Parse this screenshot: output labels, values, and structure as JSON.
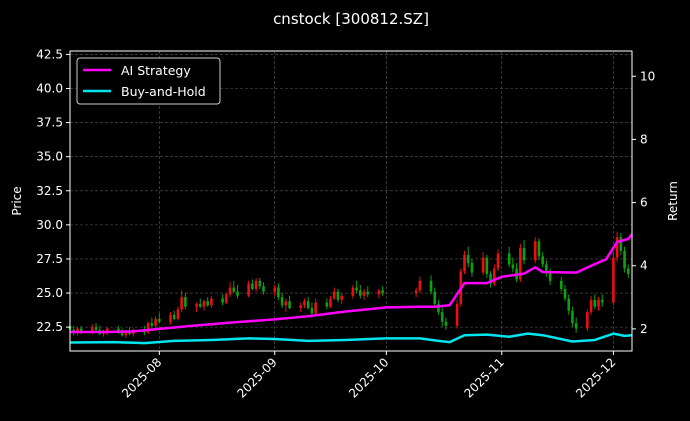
{
  "chart_data": {
    "type": "line",
    "title": "cnstock [300812.SZ]",
    "xlabel": "",
    "ylabel": "Price",
    "y2label": "Return",
    "grid": true,
    "legend_position": "top-left",
    "xlim": [
      "2025-07-08",
      "2025-12-06"
    ],
    "ylim": [
      20.75,
      42.75
    ],
    "y2lim": [
      1.3,
      10.8
    ],
    "x_tick_labels": [
      "2025-08",
      "2025-09",
      "2025-10",
      "2025-11",
      "2025-12"
    ],
    "x_ticks": [
      "2025-08-01",
      "2025-09-01",
      "2025-10-01",
      "2025-11-01",
      "2025-12-01"
    ],
    "y_ticks": [
      22.5,
      25.0,
      27.5,
      30.0,
      32.5,
      35.0,
      37.5,
      40.0,
      42.5
    ],
    "y_tick_labels": [
      "22.5",
      "25.0",
      "27.5",
      "30.0",
      "32.5",
      "35.0",
      "37.5",
      "40.0",
      "42.5"
    ],
    "y2_ticks": [
      2,
      4,
      6,
      8,
      10
    ],
    "y2_tick_labels": [
      "2",
      "4",
      "6",
      "8",
      "10"
    ],
    "colors": {
      "ai_strategy": "#ff00ff",
      "buy_and_hold": "#00e5ee",
      "candle_up": "#e81010",
      "candle_down": "#0ea00e",
      "grid": "#5a5a5a",
      "axes": "#ffffff"
    },
    "series": [
      {
        "name": "AI Strategy",
        "axis": "return",
        "points": [
          [
            "2025-07-08",
            1.9
          ],
          [
            "2025-07-18",
            1.9
          ],
          [
            "2025-07-25",
            1.92
          ],
          [
            "2025-08-01",
            2.0
          ],
          [
            "2025-08-10",
            2.1
          ],
          [
            "2025-08-20",
            2.2
          ],
          [
            "2025-09-01",
            2.3
          ],
          [
            "2025-09-10",
            2.4
          ],
          [
            "2025-09-20",
            2.55
          ],
          [
            "2025-10-01",
            2.68
          ],
          [
            "2025-10-10",
            2.7
          ],
          [
            "2025-10-14",
            2.7
          ],
          [
            "2025-10-18",
            2.75
          ],
          [
            "2025-10-22",
            3.45
          ],
          [
            "2025-10-28",
            3.45
          ],
          [
            "2025-11-01",
            3.65
          ],
          [
            "2025-11-07",
            3.75
          ],
          [
            "2025-11-10",
            3.95
          ],
          [
            "2025-11-12",
            3.8
          ],
          [
            "2025-11-21",
            3.78
          ],
          [
            "2025-11-26",
            4.05
          ],
          [
            "2025-11-29",
            4.2
          ],
          [
            "2025-12-02",
            4.75
          ],
          [
            "2025-12-05",
            4.85
          ],
          [
            "2025-12-06",
            5.0
          ]
        ]
      },
      {
        "name": "Buy-and-Hold",
        "axis": "return",
        "points": [
          [
            "2025-07-08",
            1.57
          ],
          [
            "2025-07-20",
            1.58
          ],
          [
            "2025-07-28",
            1.55
          ],
          [
            "2025-08-05",
            1.62
          ],
          [
            "2025-08-15",
            1.65
          ],
          [
            "2025-08-25",
            1.7
          ],
          [
            "2025-09-01",
            1.68
          ],
          [
            "2025-09-10",
            1.62
          ],
          [
            "2025-09-20",
            1.65
          ],
          [
            "2025-10-01",
            1.7
          ],
          [
            "2025-10-10",
            1.7
          ],
          [
            "2025-10-15",
            1.62
          ],
          [
            "2025-10-18",
            1.58
          ],
          [
            "2025-10-22",
            1.8
          ],
          [
            "2025-10-28",
            1.82
          ],
          [
            "2025-11-03",
            1.75
          ],
          [
            "2025-11-08",
            1.85
          ],
          [
            "2025-11-12",
            1.8
          ],
          [
            "2025-11-20",
            1.6
          ],
          [
            "2025-11-26",
            1.65
          ],
          [
            "2025-12-01",
            1.85
          ],
          [
            "2025-12-04",
            1.78
          ],
          [
            "2025-12-06",
            1.8
          ]
        ]
      }
    ],
    "candlesticks": {
      "axis": "price",
      "rows": [
        [
          "2025-07-08",
          22.6,
          22.9,
          22.1,
          22.3
        ],
        [
          "2025-07-09",
          22.3,
          22.6,
          21.9,
          22.1
        ],
        [
          "2025-07-10",
          22.1,
          22.5,
          21.9,
          22.4
        ],
        [
          "2025-07-11",
          22.4,
          22.6,
          22.0,
          22.2
        ],
        [
          "2025-07-14",
          22.2,
          22.7,
          22.0,
          22.5
        ],
        [
          "2025-07-15",
          22.5,
          22.8,
          22.2,
          22.3
        ],
        [
          "2025-07-16",
          22.3,
          22.6,
          21.9,
          22.0
        ],
        [
          "2025-07-17",
          22.0,
          22.3,
          21.8,
          22.2
        ],
        [
          "2025-07-18",
          22.2,
          22.5,
          21.9,
          22.4
        ],
        [
          "2025-07-21",
          22.4,
          22.6,
          22.0,
          22.1
        ],
        [
          "2025-07-22",
          22.1,
          22.4,
          21.8,
          21.9
        ],
        [
          "2025-07-23",
          21.9,
          22.3,
          21.7,
          22.2
        ],
        [
          "2025-07-24",
          22.2,
          22.5,
          21.9,
          22.0
        ],
        [
          "2025-07-25",
          22.0,
          22.4,
          21.8,
          22.3
        ],
        [
          "2025-07-28",
          22.3,
          22.6,
          21.9,
          22.1
        ],
        [
          "2025-07-29",
          22.1,
          22.9,
          22.0,
          22.8
        ],
        [
          "2025-07-30",
          22.8,
          23.2,
          22.5,
          22.6
        ],
        [
          "2025-07-31",
          22.6,
          23.3,
          22.4,
          23.1
        ],
        [
          "2025-08-01",
          23.1,
          23.5,
          22.8,
          22.9
        ],
        [
          "2025-08-04",
          22.9,
          23.6,
          22.7,
          23.4
        ],
        [
          "2025-08-05",
          23.4,
          23.7,
          23.0,
          23.1
        ],
        [
          "2025-08-06",
          23.1,
          24.0,
          23.0,
          23.8
        ],
        [
          "2025-08-07",
          23.8,
          25.2,
          23.6,
          24.7
        ],
        [
          "2025-08-08",
          24.7,
          25.0,
          23.8,
          24.0
        ],
        [
          "2025-08-11",
          24.0,
          24.3,
          23.6,
          24.2
        ],
        [
          "2025-08-12",
          24.2,
          24.6,
          23.9,
          24.0
        ],
        [
          "2025-08-13",
          24.0,
          24.5,
          23.7,
          24.4
        ],
        [
          "2025-08-14",
          24.4,
          24.7,
          24.0,
          24.1
        ],
        [
          "2025-08-15",
          24.1,
          24.8,
          23.9,
          24.6
        ],
        [
          "2025-08-18",
          24.6,
          24.9,
          24.1,
          24.3
        ],
        [
          "2025-08-19",
          24.3,
          25.0,
          24.2,
          24.9
        ],
        [
          "2025-08-20",
          24.9,
          25.8,
          24.7,
          25.4
        ],
        [
          "2025-08-21",
          25.4,
          25.9,
          25.0,
          25.1
        ],
        [
          "2025-08-22",
          25.1,
          25.6,
          24.6,
          24.8
        ],
        [
          "2025-08-25",
          24.8,
          25.9,
          24.7,
          25.7
        ],
        [
          "2025-08-26",
          25.7,
          26.0,
          25.2,
          25.3
        ],
        [
          "2025-08-27",
          25.3,
          26.1,
          25.1,
          25.9
        ],
        [
          "2025-08-28",
          25.9,
          26.1,
          25.3,
          25.5
        ],
        [
          "2025-08-29",
          25.5,
          25.8,
          24.9,
          25.1
        ],
        [
          "2025-09-01",
          25.1,
          25.6,
          24.8,
          25.4
        ],
        [
          "2025-09-02",
          25.4,
          25.7,
          24.5,
          24.7
        ],
        [
          "2025-09-03",
          24.7,
          25.0,
          23.9,
          24.1
        ],
        [
          "2025-09-04",
          24.1,
          24.6,
          23.6,
          24.4
        ],
        [
          "2025-09-05",
          24.4,
          24.8,
          23.8,
          23.9
        ],
        [
          "2025-09-08",
          23.9,
          24.3,
          23.6,
          24.1
        ],
        [
          "2025-09-09",
          24.1,
          24.6,
          23.9,
          24.4
        ],
        [
          "2025-09-10",
          24.4,
          24.7,
          23.8,
          23.9
        ],
        [
          "2025-09-11",
          23.9,
          24.3,
          23.2,
          23.5
        ],
        [
          "2025-09-12",
          23.5,
          24.6,
          23.4,
          24.3
        ],
        [
          "2025-09-15",
          24.3,
          24.6,
          23.8,
          24.0
        ],
        [
          "2025-09-16",
          24.0,
          24.8,
          23.9,
          24.6
        ],
        [
          "2025-09-17",
          24.6,
          25.4,
          24.5,
          25.1
        ],
        [
          "2025-09-18",
          25.1,
          25.3,
          24.3,
          24.5
        ],
        [
          "2025-09-19",
          24.5,
          25.0,
          24.2,
          24.8
        ],
        [
          "2025-09-22",
          24.8,
          25.6,
          24.6,
          25.4
        ],
        [
          "2025-09-23",
          25.4,
          25.9,
          25.0,
          25.2
        ],
        [
          "2025-09-24",
          25.2,
          25.6,
          24.6,
          24.8
        ],
        [
          "2025-09-25",
          24.8,
          25.3,
          24.5,
          25.1
        ],
        [
          "2025-09-26",
          25.1,
          25.5,
          24.7,
          24.9
        ],
        [
          "2025-09-29",
          24.9,
          25.3,
          24.6,
          25.2
        ],
        [
          "2025-09-30",
          25.2,
          25.5,
          24.8,
          25.0
        ],
        [
          "2025-10-09",
          25.0,
          25.4,
          24.7,
          25.2
        ],
        [
          "2025-10-10",
          25.2,
          26.2,
          25.0,
          25.9
        ],
        [
          "2025-10-13",
          25.9,
          26.3,
          24.9,
          25.1
        ],
        [
          "2025-10-14",
          25.1,
          25.4,
          23.9,
          24.2
        ],
        [
          "2025-10-15",
          24.2,
          24.5,
          23.4,
          23.6
        ],
        [
          "2025-10-16",
          23.6,
          24.0,
          22.5,
          22.9
        ],
        [
          "2025-10-17",
          22.9,
          23.2,
          22.3,
          22.6
        ],
        [
          "2025-10-20",
          22.6,
          24.5,
          22.4,
          24.2
        ],
        [
          "2025-10-21",
          24.2,
          26.8,
          24.0,
          26.6
        ],
        [
          "2025-10-22",
          26.6,
          28.1,
          26.4,
          27.8
        ],
        [
          "2025-10-23",
          27.8,
          28.4,
          26.9,
          27.2
        ],
        [
          "2025-10-24",
          27.2,
          27.5,
          26.2,
          26.5
        ],
        [
          "2025-10-27",
          26.5,
          28.0,
          26.3,
          27.6
        ],
        [
          "2025-10-28",
          27.6,
          27.8,
          26.1,
          26.4
        ],
        [
          "2025-10-29",
          26.4,
          26.6,
          25.4,
          25.7
        ],
        [
          "2025-10-30",
          25.7,
          27.1,
          25.5,
          26.8
        ],
        [
          "2025-10-31",
          26.8,
          28.2,
          26.6,
          27.9
        ],
        [
          "2025-11-03",
          27.9,
          28.4,
          26.9,
          27.1
        ],
        [
          "2025-11-04",
          27.1,
          27.6,
          26.5,
          26.8
        ],
        [
          "2025-11-05",
          26.8,
          27.2,
          25.8,
          26.0
        ],
        [
          "2025-11-06",
          26.0,
          28.6,
          25.8,
          28.3
        ],
        [
          "2025-11-07",
          28.3,
          28.9,
          27.1,
          27.4
        ],
        [
          "2025-11-10",
          27.4,
          29.1,
          27.2,
          28.8
        ],
        [
          "2025-11-11",
          28.8,
          29.0,
          27.4,
          27.7
        ],
        [
          "2025-11-12",
          27.7,
          28.0,
          26.9,
          27.1
        ],
        [
          "2025-11-13",
          27.1,
          27.4,
          26.2,
          26.5
        ],
        [
          "2025-11-14",
          26.5,
          26.8,
          25.6,
          25.9
        ],
        [
          "2025-11-17",
          25.9,
          26.2,
          25.1,
          25.3
        ],
        [
          "2025-11-18",
          25.3,
          25.6,
          24.4,
          24.6
        ],
        [
          "2025-11-19",
          24.6,
          24.9,
          23.4,
          23.7
        ],
        [
          "2025-11-20",
          23.7,
          24.0,
          22.5,
          22.8
        ],
        [
          "2025-11-21",
          22.8,
          23.2,
          22.1,
          22.4
        ],
        [
          "2025-11-24",
          22.4,
          23.8,
          22.2,
          23.6
        ],
        [
          "2025-11-25",
          23.6,
          24.8,
          23.4,
          24.5
        ],
        [
          "2025-11-26",
          24.5,
          24.9,
          23.8,
          24.0
        ],
        [
          "2025-11-27",
          24.0,
          24.7,
          23.7,
          24.5
        ],
        [
          "2025-11-28",
          24.5,
          24.9,
          24.0,
          24.3
        ],
        [
          "2025-12-01",
          24.3,
          28.0,
          24.1,
          27.6
        ],
        [
          "2025-12-02",
          27.6,
          29.5,
          27.3,
          29.1
        ],
        [
          "2025-12-03",
          29.1,
          29.4,
          27.8,
          28.1
        ],
        [
          "2025-12-04",
          28.1,
          28.4,
          26.5,
          26.8
        ],
        [
          "2025-12-05",
          26.8,
          27.1,
          26.1,
          26.4
        ]
      ]
    }
  }
}
